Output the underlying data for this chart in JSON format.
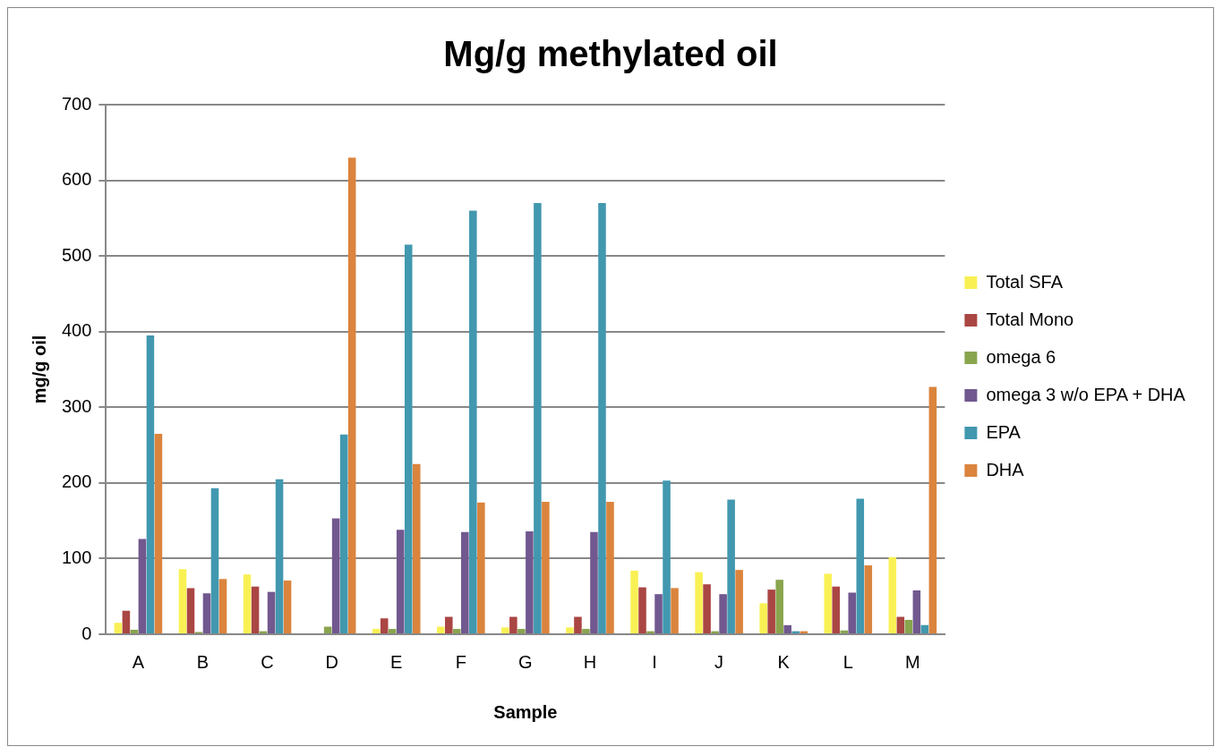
{
  "chart_data": {
    "type": "bar",
    "title": "Mg/g methylated oil",
    "xlabel": "Sample",
    "ylabel": "mg/g oil",
    "categories": [
      "A",
      "B",
      "C",
      "D",
      "E",
      "F",
      "G",
      "H",
      "I",
      "J",
      "K",
      "L",
      "M"
    ],
    "series": [
      {
        "name": "Total SFA",
        "color": "#f9f154",
        "values": [
          15,
          86,
          79,
          0,
          7,
          10,
          9,
          9,
          84,
          82,
          41,
          80,
          102
        ]
      },
      {
        "name": "Total Mono",
        "color": "#aa4643",
        "values": [
          31,
          61,
          63,
          0,
          21,
          23,
          23,
          23,
          62,
          66,
          59,
          63,
          23
        ]
      },
      {
        "name": "omega 6",
        "color": "#89a54e",
        "values": [
          6,
          3,
          4,
          10,
          7,
          7,
          7,
          7,
          4,
          4,
          72,
          5,
          19
        ]
      },
      {
        "name": "omega 3 w/o EPA + DHA",
        "color": "#71588f",
        "values": [
          126,
          54,
          56,
          153,
          138,
          135,
          136,
          135,
          53,
          53,
          12,
          55,
          58
        ]
      },
      {
        "name": "EPA",
        "color": "#4198af",
        "values": [
          395,
          193,
          205,
          264,
          515,
          560,
          570,
          570,
          203,
          178,
          4,
          179,
          12
        ]
      },
      {
        "name": "DHA",
        "color": "#db843d",
        "values": [
          265,
          73,
          71,
          630,
          225,
          174,
          175,
          175,
          61,
          85,
          4,
          91,
          327
        ]
      }
    ],
    "ylim": [
      0,
      700
    ],
    "yticks": [
      0,
      100,
      200,
      300,
      400,
      500,
      600,
      700
    ],
    "grid": "y",
    "legend": "right"
  }
}
